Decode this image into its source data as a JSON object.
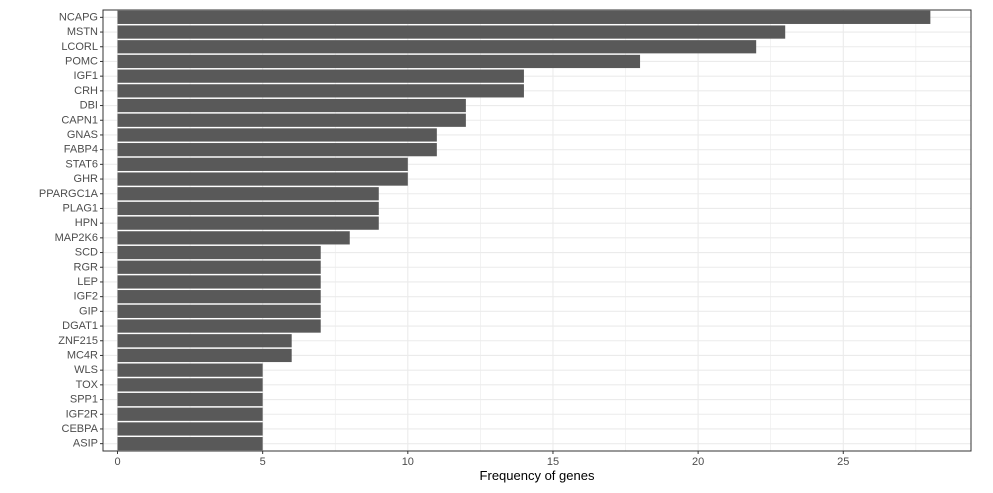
{
  "chart_data": {
    "type": "bar",
    "orientation": "horizontal",
    "categories": [
      "NCAPG",
      "MSTN",
      "LCORL",
      "POMC",
      "IGF1",
      "CRH",
      "DBI",
      "CAPN1",
      "GNAS",
      "FABP4",
      "STAT6",
      "GHR",
      "PPARGC1A",
      "PLAG1",
      "HPN",
      "MAP2K6",
      "SCD",
      "RGR",
      "LEP",
      "IGF2",
      "GIP",
      "DGAT1",
      "ZNF215",
      "MC4R",
      "WLS",
      "TOX",
      "SPP1",
      "IGF2R",
      "CEBPA",
      "ASIP"
    ],
    "values": [
      28,
      23,
      22,
      18,
      14,
      14,
      12,
      12,
      11,
      11,
      10,
      10,
      9,
      9,
      9,
      8,
      7,
      7,
      7,
      7,
      7,
      7,
      6,
      6,
      5,
      5,
      5,
      5,
      5,
      5
    ],
    "xlabel": "Frequency of genes",
    "ylabel": "",
    "xlim": [
      -0.5,
      29.4
    ],
    "xticks": [
      0,
      5,
      10,
      15,
      20,
      25
    ],
    "grid": true,
    "legend": "none",
    "bar_color": "#595959",
    "panel_border_color": "#333333",
    "grid_color": "#ebebeb"
  }
}
